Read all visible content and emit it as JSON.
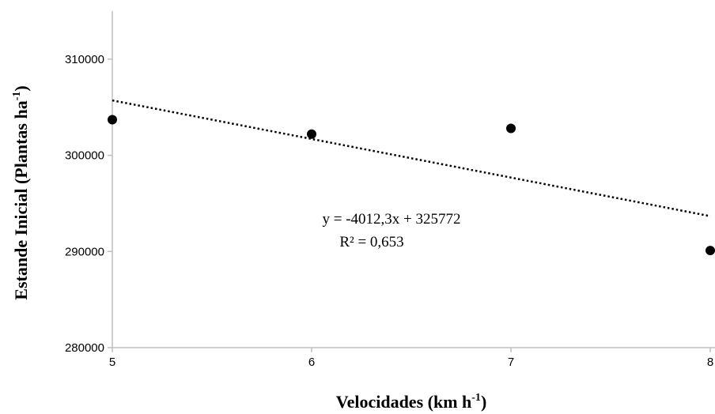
{
  "chart_data": {
    "type": "scatter",
    "x": [
      5,
      6,
      7,
      8
    ],
    "y": [
      303700,
      302200,
      302800,
      290100
    ],
    "xlim": [
      5,
      8
    ],
    "ylim": [
      280000,
      315000
    ],
    "x_ticks": [
      "5",
      "6",
      "7",
      "8"
    ],
    "y_ticks": [
      "280000",
      "290000",
      "300000",
      "310000"
    ],
    "xlabel": "Velocidades (km h",
    "xlabel_unit_exp": "-1",
    "xlabel_close": ")",
    "ylabel": "Estande Inicial (Plantas ha",
    "ylabel_unit_exp": "-1",
    "ylabel_close": ")",
    "trendline": {
      "type": "linear",
      "slope": -4012.3,
      "intercept": 325772,
      "style": "dotted",
      "equation": "y = -4012,3x + 325772",
      "r_squared": "R² = 0,653"
    },
    "grid": false,
    "marker_color": "#000000",
    "axis_color": "#bfbfbf"
  }
}
